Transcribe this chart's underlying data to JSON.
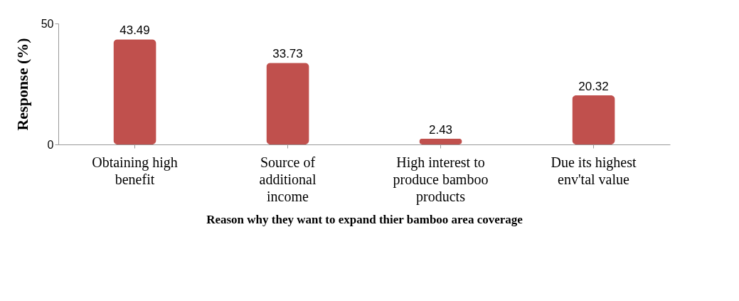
{
  "chart_data": {
    "type": "bar",
    "xlabel": "Reason why they want to expand thier bamboo area coverage",
    "ylabel": "Response (%)",
    "categories": [
      "Obtaining high benefit",
      "Source of additional income",
      "High interest to produce bamboo products",
      "Due its highest env'tal value"
    ],
    "values": [
      43.49,
      33.73,
      2.43,
      20.32
    ],
    "color": "#c0504d",
    "ylim": [
      0,
      50
    ],
    "yticks": [
      0,
      50
    ],
    "data_labels": true
  }
}
